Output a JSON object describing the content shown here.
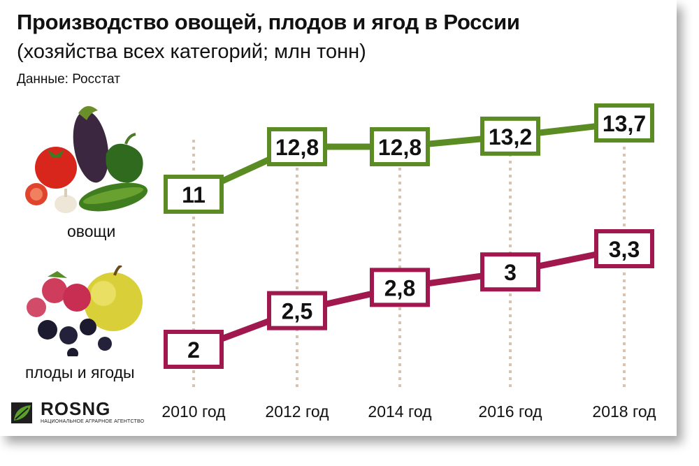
{
  "title": "Производство овощей, плодов и ягод в России",
  "subtitle": "(хозяйства всех категорий; млн тонн)",
  "source": "Данные: Росстат",
  "logo": {
    "name": "ROSNG",
    "tagline": "НАЦИОНАЛЬНОЕ АГРАРНОЕ АГЕНТСТВО"
  },
  "colors": {
    "vegetables": "#5b8c23",
    "fruits": "#a0184e",
    "guide": "#d9c2ae"
  },
  "chart_data": {
    "type": "line",
    "categories": [
      "2010 год",
      "2012 год",
      "2014 год",
      "2016 год",
      "2018 год"
    ],
    "series": [
      {
        "name": "овощи",
        "values": [
          11,
          12.8,
          12.8,
          13.2,
          13.7
        ],
        "labels": [
          "11",
          "12,8",
          "12,8",
          "13,2",
          "13,7"
        ]
      },
      {
        "name": "плоды и ягоды",
        "values": [
          2,
          2.5,
          2.8,
          3,
          3.3
        ],
        "labels": [
          "2",
          "2,5",
          "2,8",
          "3",
          "3,3"
        ]
      }
    ],
    "grid": false,
    "legend": "left"
  }
}
